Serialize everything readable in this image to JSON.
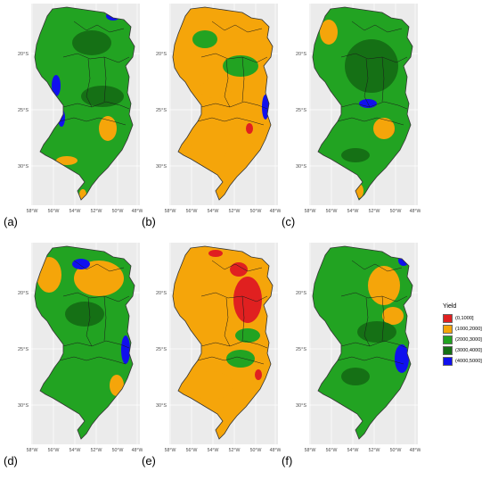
{
  "figure": {
    "panels": [
      {
        "label": "(a)",
        "base": "green",
        "scheme": "a"
      },
      {
        "label": "(b)",
        "base": "orange",
        "scheme": "b"
      },
      {
        "label": "(c)",
        "base": "green",
        "scheme": "c"
      },
      {
        "label": "(d)",
        "base": "green",
        "scheme": "d"
      },
      {
        "label": "(e)",
        "base": "orange",
        "scheme": "e"
      },
      {
        "label": "(f)",
        "base": "green",
        "scheme": "f"
      }
    ],
    "lat_ticks": [
      "20°S",
      "25°S",
      "30°S"
    ],
    "lon_ticks": [
      "58°W",
      "56°W",
      "54°W",
      "52°W",
      "50°W",
      "48°W"
    ]
  },
  "legend": {
    "title": "Yield",
    "items": [
      {
        "label": "(0,1000]",
        "color": "#e02020"
      },
      {
        "label": "(1000,2000]",
        "color": "#f5a50a"
      },
      {
        "label": "(2000,3000]",
        "color": "#22a322"
      },
      {
        "label": "(3000,4000]",
        "color": "#157015"
      },
      {
        "label": "(4000,5000]",
        "color": "#1010ee"
      }
    ]
  },
  "colors": {
    "panel_bg": "#ebebeb",
    "grid": "#ffffff",
    "border": "#333333",
    "tick_text": "#4d4d4d"
  }
}
